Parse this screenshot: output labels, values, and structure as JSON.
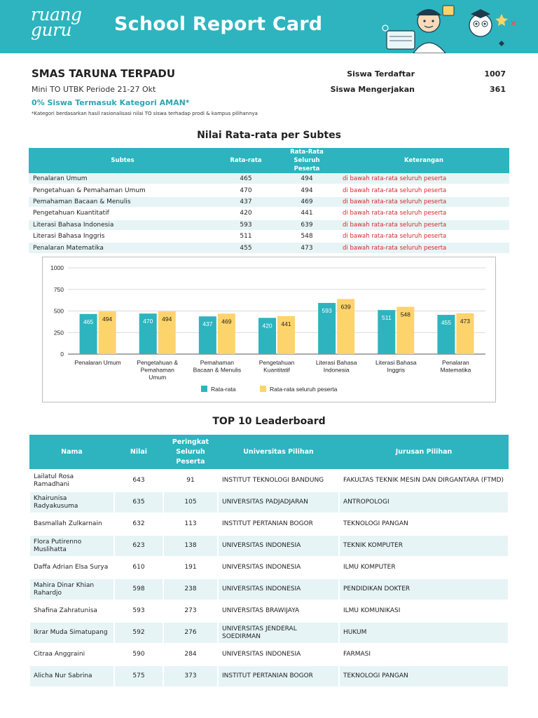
{
  "header": {
    "logo_line1": "ruang",
    "logo_line2": "guru",
    "title": "School Report Card"
  },
  "school": {
    "name": "SMAS TARUNA TERPADU",
    "periode": "Mini TO UTBK Periode 21-27 Okt",
    "aman_text": "0% Siswa Termasuk Kategori AMAN*",
    "note": "*Kategori berdasarkan hasil rasionalisasi nilai TO siswa terhadap prodi & kampus pilihannya"
  },
  "stats": {
    "terdaftar_label": "Siswa Terdaftar",
    "terdaftar_value": "1007",
    "mengerjakan_label": "Siswa Mengerjakan",
    "mengerjakan_value": "361"
  },
  "subtes_section": {
    "title": "Nilai Rata-rata per Subtes",
    "headers": [
      "Subtes",
      "Rata-rata",
      "Rata-Rata Seluruh Peserta",
      "Keterangan"
    ],
    "rows": [
      {
        "subtes": "Penalaran Umum",
        "rata": "465",
        "seluruh": "494",
        "ket": "di bawah rata-rata seluruh peserta"
      },
      {
        "subtes": "Pengetahuan & Pemahaman Umum",
        "rata": "470",
        "seluruh": "494",
        "ket": "di bawah rata-rata seluruh peserta"
      },
      {
        "subtes": "Pemahaman Bacaan & Menulis",
        "rata": "437",
        "seluruh": "469",
        "ket": "di bawah rata-rata seluruh peserta"
      },
      {
        "subtes": "Pengetahuan Kuantitatif",
        "rata": "420",
        "seluruh": "441",
        "ket": "di bawah rata-rata seluruh peserta"
      },
      {
        "subtes": "Literasi Bahasa Indonesia",
        "rata": "593",
        "seluruh": "639",
        "ket": "di bawah rata-rata seluruh peserta"
      },
      {
        "subtes": "Literasi Bahasa Inggris",
        "rata": "511",
        "seluruh": "548",
        "ket": "di bawah rata-rata seluruh peserta"
      },
      {
        "subtes": "Penalaran Matematika",
        "rata": "455",
        "seluruh": "473",
        "ket": "di bawah rata-rata seluruh peserta"
      }
    ]
  },
  "chart_data": {
    "type": "bar",
    "categories": [
      [
        "Penalaran Umum"
      ],
      [
        "Pengetahuan &",
        "Pemahaman",
        "Umum"
      ],
      [
        "Pemahaman",
        "Bacaan & Menulis"
      ],
      [
        "Pengetahuan",
        "Kuantitatif"
      ],
      [
        "Literasi Bahasa",
        "Indonesia"
      ],
      [
        "Literasi Bahasa",
        "Inggris"
      ],
      [
        "Penalaran",
        "Matematika"
      ]
    ],
    "series": [
      {
        "name": "Rata-rata",
        "color": "#2db4bf",
        "values": [
          465,
          470,
          437,
          420,
          593,
          511,
          455
        ]
      },
      {
        "name": "Rata-rata seluruh peserta",
        "color": "#fdd36b",
        "values": [
          494,
          494,
          469,
          441,
          639,
          548,
          473
        ]
      }
    ],
    "yticks": [
      0,
      250,
      500,
      750,
      1000
    ],
    "ylim": [
      0,
      1000
    ],
    "grid": true,
    "legend_position": "bottom-center"
  },
  "leaderboard": {
    "title": "TOP 10 Leaderboard",
    "headers": [
      "Nama",
      "Nilai",
      "Peringkat Seluruh Peserta",
      "Universitas Pilihan",
      "Jurusan Pilihan"
    ],
    "rows": [
      {
        "nama": "Lailatul Rosa Ramadhani",
        "nilai": "643",
        "peringkat": "91",
        "univ": "INSTITUT TEKNOLOGI BANDUNG",
        "jurusan": "FAKULTAS TEKNIK MESIN DAN DIRGANTARA (FTMD)"
      },
      {
        "nama": "Khairunisa Radyakusuma",
        "nilai": "635",
        "peringkat": "105",
        "univ": "UNIVERSITAS PADJADJARAN",
        "jurusan": "ANTROPOLOGI"
      },
      {
        "nama": "Basmallah Zulkarnain",
        "nilai": "632",
        "peringkat": "113",
        "univ": "INSTITUT PERTANIAN BOGOR",
        "jurusan": "TEKNOLOGI PANGAN"
      },
      {
        "nama": "Flora Putirenno Muslihatta",
        "nilai": "623",
        "peringkat": "138",
        "univ": "UNIVERSITAS INDONESIA",
        "jurusan": "TEKNIK KOMPUTER"
      },
      {
        "nama": "Daffa Adrian Elsa Surya",
        "nilai": "610",
        "peringkat": "191",
        "univ": "UNIVERSITAS INDONESIA",
        "jurusan": "ILMU KOMPUTER"
      },
      {
        "nama": "Mahira Dinar Khian Rahardjo",
        "nilai": "598",
        "peringkat": "238",
        "univ": "UNIVERSITAS INDONESIA",
        "jurusan": "PENDIDIKAN DOKTER"
      },
      {
        "nama": "Shafina Zahratunisa",
        "nilai": "593",
        "peringkat": "273",
        "univ": "UNIVERSITAS BRAWIJAYA",
        "jurusan": "ILMU KOMUNIKASI"
      },
      {
        "nama": "Ikrar Muda Simatupang",
        "nilai": "592",
        "peringkat": "276",
        "univ": "UNIVERSITAS JENDERAL SOEDIRMAN",
        "jurusan": "HUKUM"
      },
      {
        "nama": "Citraa Anggraini",
        "nilai": "590",
        "peringkat": "284",
        "univ": "UNIVERSITAS INDONESIA",
        "jurusan": "FARMASI"
      },
      {
        "nama": "Alicha Nur Sabrina",
        "nilai": "575",
        "peringkat": "373",
        "univ": "INSTITUT PERTANIAN BOGOR",
        "jurusan": "TEKNOLOGI PANGAN"
      }
    ]
  },
  "colors": {
    "accent": "#2db4bf",
    "secondary": "#fdd36b",
    "warning_text": "#d42a2a"
  }
}
